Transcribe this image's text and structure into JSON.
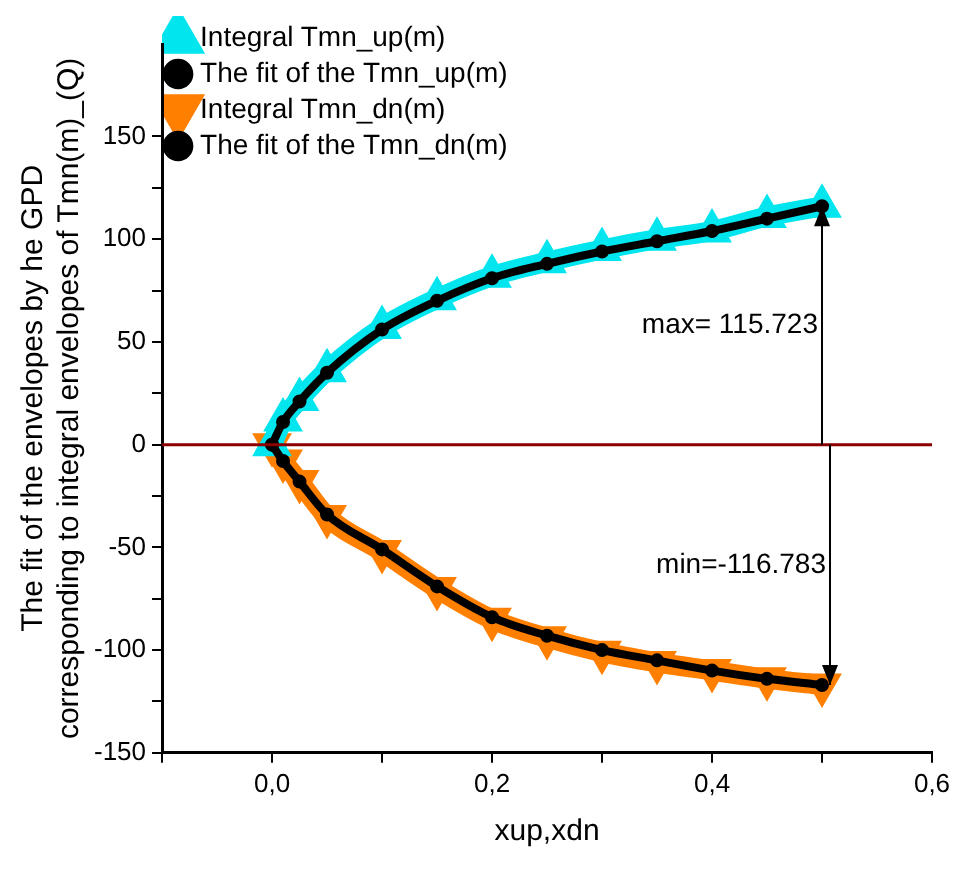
{
  "chart_data": {
    "type": "line",
    "xlabel": "xup,xdn",
    "ylabel": "The fit of the envelopes by he GPD\ncorresponding to integral envelopes of Tmn(m)_(Q)",
    "x": [
      0,
      0.01,
      0.025,
      0.05,
      0.1,
      0.15,
      0.2,
      0.25,
      0.3,
      0.35,
      0.4,
      0.45,
      0.5
    ],
    "series": [
      {
        "name": "Integral Tmn_up(m)",
        "color": "#00e5ee",
        "marker": "triangle",
        "values": [
          0,
          12,
          22,
          36,
          57,
          71,
          82,
          89,
          95,
          100,
          104,
          111,
          116
        ]
      },
      {
        "name": "The fit of the Tmn_up(m)",
        "color": "#000000",
        "marker": "circle",
        "values": [
          0,
          11,
          21,
          35,
          56,
          70,
          81,
          88,
          94,
          99,
          104,
          110,
          116
        ]
      },
      {
        "name": "Integral Tmn_dn(m)",
        "color": "#ff7f00",
        "marker": "triangle",
        "values": [
          0,
          -8,
          -18,
          -35,
          -52,
          -70,
          -85,
          -94,
          -101,
          -106,
          -110,
          -114,
          -117
        ]
      },
      {
        "name": "The fit of the Tmn_dn(m)",
        "color": "#000000",
        "marker": "circle",
        "values": [
          0,
          -8,
          -18,
          -34,
          -51,
          -69,
          -84,
          -93,
          -100,
          -105,
          -110,
          -114,
          -117
        ]
      }
    ],
    "xlim": [
      -0.1,
      0.6
    ],
    "xticks": [
      {
        "value": -0.1,
        "label": null
      },
      {
        "value": 0,
        "label": "0,0"
      },
      {
        "value": 0.1,
        "label": null
      },
      {
        "value": 0.2,
        "label": "0,2"
      },
      {
        "value": 0.3,
        "label": null
      },
      {
        "value": 0.4,
        "label": "0,4"
      },
      {
        "value": 0.5,
        "label": null
      },
      {
        "value": 0.6,
        "label": "0,6"
      }
    ],
    "ylim": [
      -150,
      195
    ],
    "yticks": [
      -150,
      {
        "value": -125,
        "label": null
      },
      -100,
      {
        "value": -75,
        "label": null
      },
      -50,
      {
        "value": -25,
        "label": null
      },
      0,
      {
        "value": 25,
        "label": null
      },
      50,
      {
        "value": 75,
        "label": null
      },
      100,
      {
        "value": 125,
        "label": null
      },
      150
    ],
    "ref_lines": [
      {
        "axis": "y",
        "value": 0,
        "color": "#8b0000"
      }
    ],
    "annotations": [
      "max= 115.723",
      "min=-116.783"
    ],
    "grid": false,
    "legend": "top left"
  }
}
